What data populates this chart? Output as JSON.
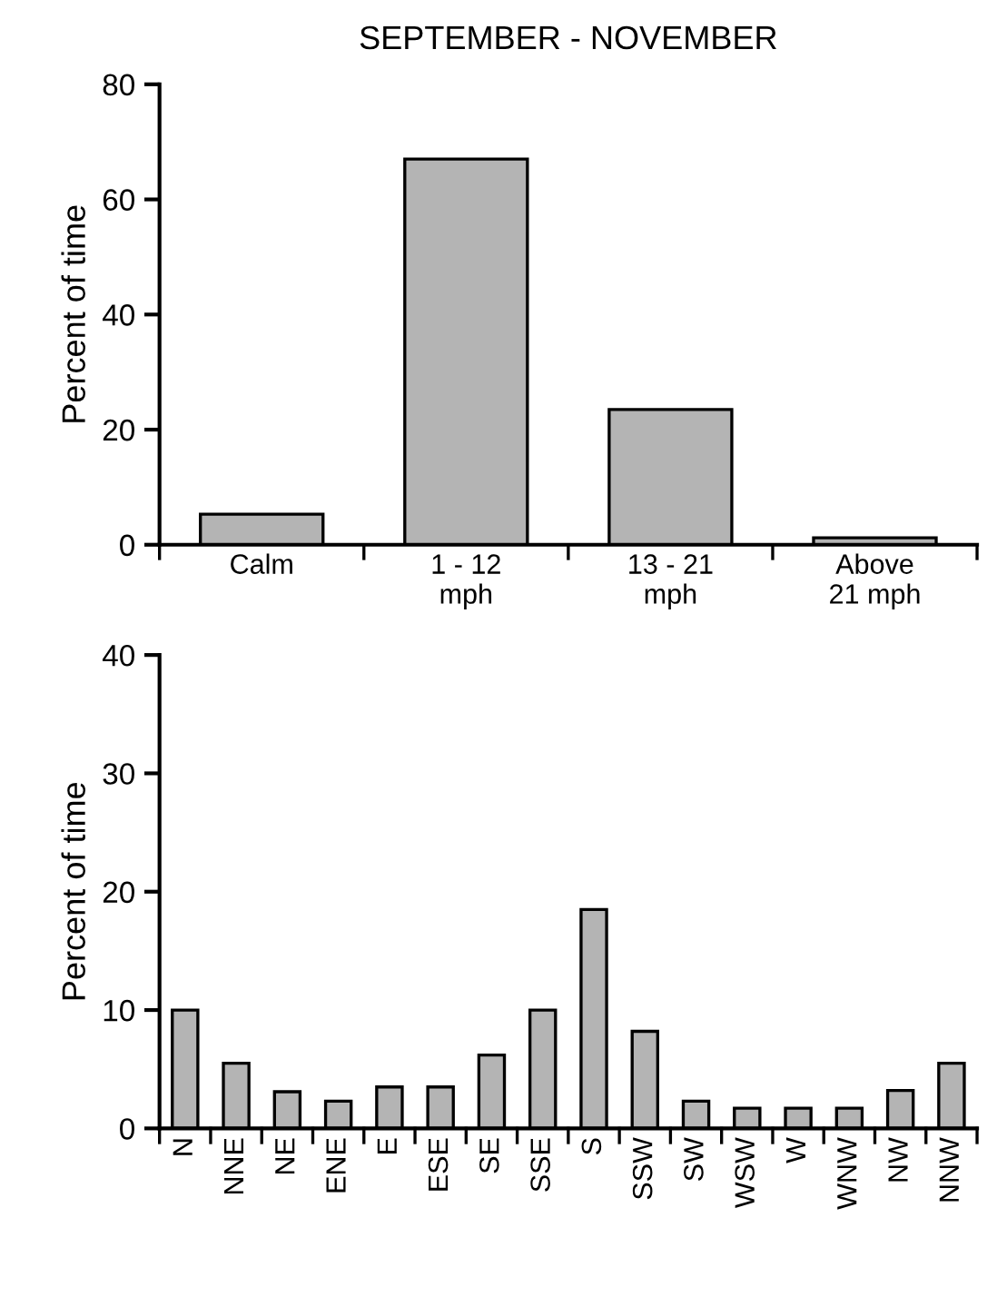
{
  "chart_data": [
    {
      "type": "bar",
      "title": "SEPTEMBER - NOVEMBER",
      "ylabel": "Percent of time",
      "categories": [
        "Calm",
        "1 - 12\nmph",
        "13 - 21\nmph",
        "Above\n21 mph"
      ],
      "values": [
        5.3,
        67,
        23.5,
        1.2
      ],
      "color": "#b4b4b4",
      "ylim": [
        0,
        80
      ],
      "yticks": [
        0,
        20,
        40,
        60,
        80
      ],
      "grid": false
    },
    {
      "type": "bar",
      "ylabel": "Percent of time",
      "categories": [
        "N",
        "NNE",
        "NE",
        "ENE",
        "E",
        "ESE",
        "SE",
        "SSE",
        "S",
        "SSW",
        "SW",
        "WSW",
        "W",
        "WNW",
        "NW",
        "NNW"
      ],
      "values": [
        10,
        5.5,
        3.1,
        2.3,
        3.5,
        3.5,
        6.2,
        10,
        18.5,
        8.2,
        2.3,
        1.7,
        1.7,
        1.7,
        3.2,
        5.5
      ],
      "color": "#b4b4b4",
      "ylim": [
        0,
        40
      ],
      "yticks": [
        0,
        10,
        20,
        30,
        40
      ],
      "grid": false
    }
  ]
}
